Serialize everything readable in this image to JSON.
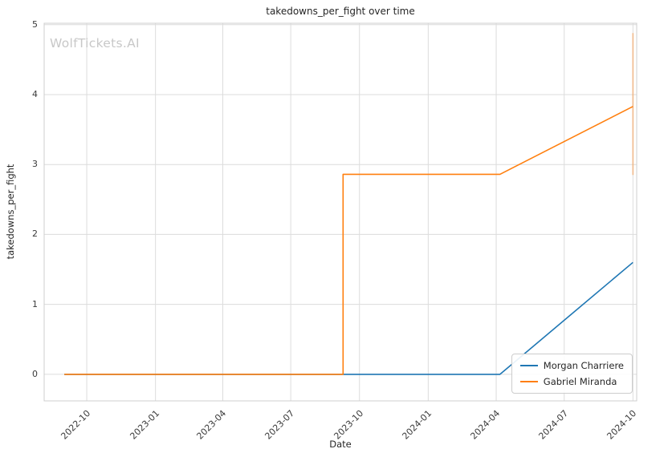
{
  "chart_data": {
    "type": "line",
    "title": "takedowns_per_fight over time",
    "xlabel": "Date",
    "ylabel": "takedowns_per_fight",
    "watermark": "WolfTickets.AI",
    "grid": true,
    "legend_position": "lower right",
    "x_domain": [
      "2022-08-05",
      "2024-10-06"
    ],
    "ylim": [
      -0.38,
      5.02
    ],
    "y_ticks": [
      0,
      1,
      2,
      3,
      4,
      5
    ],
    "x_ticks": [
      {
        "label": "2022-10",
        "date": "2022-10-01"
      },
      {
        "label": "2023-01",
        "date": "2023-01-01"
      },
      {
        "label": "2023-04",
        "date": "2023-04-01"
      },
      {
        "label": "2023-07",
        "date": "2023-07-01"
      },
      {
        "label": "2023-10",
        "date": "2023-10-01"
      },
      {
        "label": "2024-01",
        "date": "2024-01-01"
      },
      {
        "label": "2024-04",
        "date": "2024-04-01"
      },
      {
        "label": "2024-07",
        "date": "2024-07-01"
      },
      {
        "label": "2024-10",
        "date": "2024-10-01"
      }
    ],
    "series": [
      {
        "name": "Morgan Charriere",
        "color": "#1f77b4",
        "points": [
          [
            "2022-09-01",
            0
          ],
          [
            "2024-04-06",
            0
          ],
          [
            "2024-10-01",
            1.6
          ]
        ]
      },
      {
        "name": "Gabriel Miranda",
        "color": "#ff7f0e",
        "points": [
          [
            "2022-09-01",
            0
          ],
          [
            "2023-09-09",
            0
          ],
          [
            "2023-09-09",
            2.86
          ],
          [
            "2024-04-06",
            2.86
          ],
          [
            "2024-10-01",
            3.83
          ]
        ]
      }
    ],
    "annotations": [
      {
        "type": "vertical-segment",
        "date": "2024-10-01",
        "y1": 2.85,
        "y2": 4.88,
        "color": "#ff7f0e",
        "opacity": 0.35
      }
    ],
    "colors": {
      "grid": "#dcdcdc",
      "frame": "#cfcfcf",
      "blue_series": "#1f77b4",
      "orange_series": "#ff7f0e",
      "watermark": "#c8c8c8"
    }
  }
}
